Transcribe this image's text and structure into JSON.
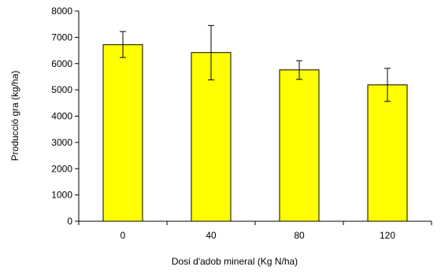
{
  "chart_data": {
    "type": "bar",
    "title": "",
    "xlabel": "Dosi d'adob mineral (Kg N/ha)",
    "ylabel": "Producció gra (kg/ha)",
    "categories": [
      "0",
      "40",
      "80",
      "120"
    ],
    "values": [
      6720,
      6420,
      5760,
      5190
    ],
    "error_low": [
      6230,
      5380,
      5400,
      4560
    ],
    "error_high": [
      7220,
      7450,
      6110,
      5820
    ],
    "ylim": [
      0,
      8000
    ],
    "yticks": [
      "0",
      "1000",
      "2000",
      "3000",
      "4000",
      "5000",
      "6000",
      "7000",
      "8000"
    ],
    "grid": false,
    "legend": "none",
    "colors": {
      "bar_fill": "#ffff00",
      "bar_stroke": "#000000",
      "axis": "#000000"
    }
  }
}
